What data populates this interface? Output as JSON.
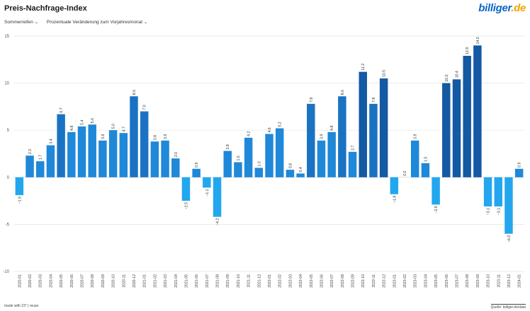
{
  "header": {
    "title": "Preis-Nachfrage-Index",
    "logo_text": "billiger",
    "logo_suffix": ".de"
  },
  "filters": {
    "category": "Sommerreifen",
    "metric": "Prozentuale Veränderung zum Vorjahresmonat",
    "chevron_icon": "chevron-down-icon"
  },
  "footer": {
    "made_with": "made with 23° | reuse",
    "source": "Quelle: billiger.de/data"
  },
  "colors": {
    "pos_light": "#1f88d8",
    "pos_mid": "#1a73c2",
    "pos_dark": "#1359a3",
    "neg": "#22a7ee",
    "grid": "#e4e4e4",
    "zero": "#cfcfcf"
  },
  "chart_data": {
    "type": "bar",
    "title": "",
    "xlabel": "",
    "ylabel": "",
    "ylim": [
      -10,
      15
    ],
    "yticks": [
      -10,
      -5,
      0,
      5,
      10,
      15
    ],
    "grid": true,
    "categories": [
      "2020-01",
      "2020-02",
      "2020-03",
      "2020-04",
      "2020-05",
      "2020-06",
      "2020-07",
      "2020-08",
      "2020-09",
      "2020-10",
      "2020-11",
      "2020-12",
      "2021-01",
      "2021-02",
      "2021-03",
      "2021-04",
      "2021-05",
      "2021-06",
      "2021-07",
      "2021-08",
      "2021-09",
      "2021-10",
      "2021-11",
      "2021-12",
      "2022-01",
      "2022-02",
      "2022-03",
      "2022-04",
      "2022-05",
      "2022-06",
      "2022-07",
      "2022-08",
      "2022-09",
      "2022-10",
      "2022-11",
      "2022-12",
      "2023-01",
      "2023-02",
      "2023-03",
      "2023-04",
      "2023-05",
      "2023-06",
      "2023-07",
      "2023-08",
      "2023-09",
      "2023-10",
      "2023-11",
      "2023-12",
      "2024-01"
    ],
    "values": [
      -1.9,
      2.3,
      1.7,
      3.4,
      6.7,
      4.8,
      5.4,
      5.6,
      3.9,
      5.0,
      4.7,
      8.6,
      7.0,
      3.8,
      3.9,
      2.0,
      -2.5,
      0.9,
      -1.1,
      -4.2,
      2.8,
      1.6,
      4.2,
      1.0,
      4.6,
      5.2,
      0.8,
      0.4,
      7.8,
      3.9,
      4.8,
      8.6,
      2.7,
      11.2,
      7.8,
      10.5,
      -1.8,
      0.0,
      3.9,
      1.5,
      -2.9,
      10.0,
      10.4,
      12.9,
      14.0,
      -3.1,
      -3.1,
      -6.0,
      0.9
    ],
    "labels": [
      "−1.9",
      "2.3",
      "1.7",
      "3.4",
      "6.7",
      "4.8",
      "5.4",
      "5.6",
      "3.9",
      "5.0",
      "4.7",
      "8.6",
      "7.0",
      "3.8",
      "3.9",
      "2.0",
      "−2.5",
      "0.9",
      "−1.1",
      "−4.2",
      "2.8",
      "1.6",
      "4.2",
      "1.0",
      "4.6",
      "5.2",
      "0.8",
      "0.4",
      "7.8",
      "3.9",
      "4.8",
      "8.6",
      "2.7",
      "11.2",
      "7.8",
      "10.5",
      "−1.8",
      "0.0",
      "3.9",
      "1.5",
      "−2.9",
      "10.0",
      "10.4",
      "12.9",
      "14.0",
      "−3.1",
      "−3.1",
      "−6.0",
      "0.9"
    ]
  }
}
